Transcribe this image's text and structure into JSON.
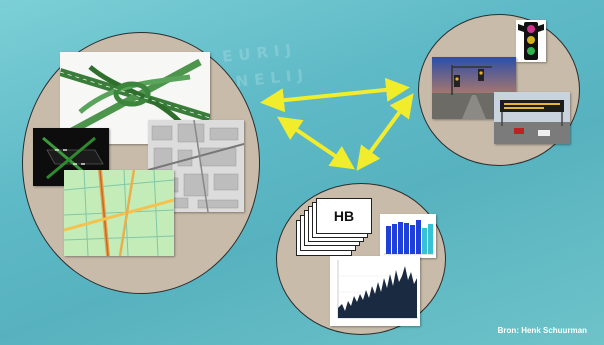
{
  "hb_label": "HB",
  "credit": "Bron: Henk Schuurman",
  "watermark": [
    "EURIJ",
    "KNELIJ"
  ],
  "colors": {
    "background": "#5fbac7",
    "circle_fill": "#c8bba9",
    "circle_stroke": "#2d2d2d",
    "arrow": "#f1ec2c",
    "bar_blue": "#1f3fd6",
    "bar_cyan": "#36c2d4",
    "line_chart": "#1a2a40"
  }
}
